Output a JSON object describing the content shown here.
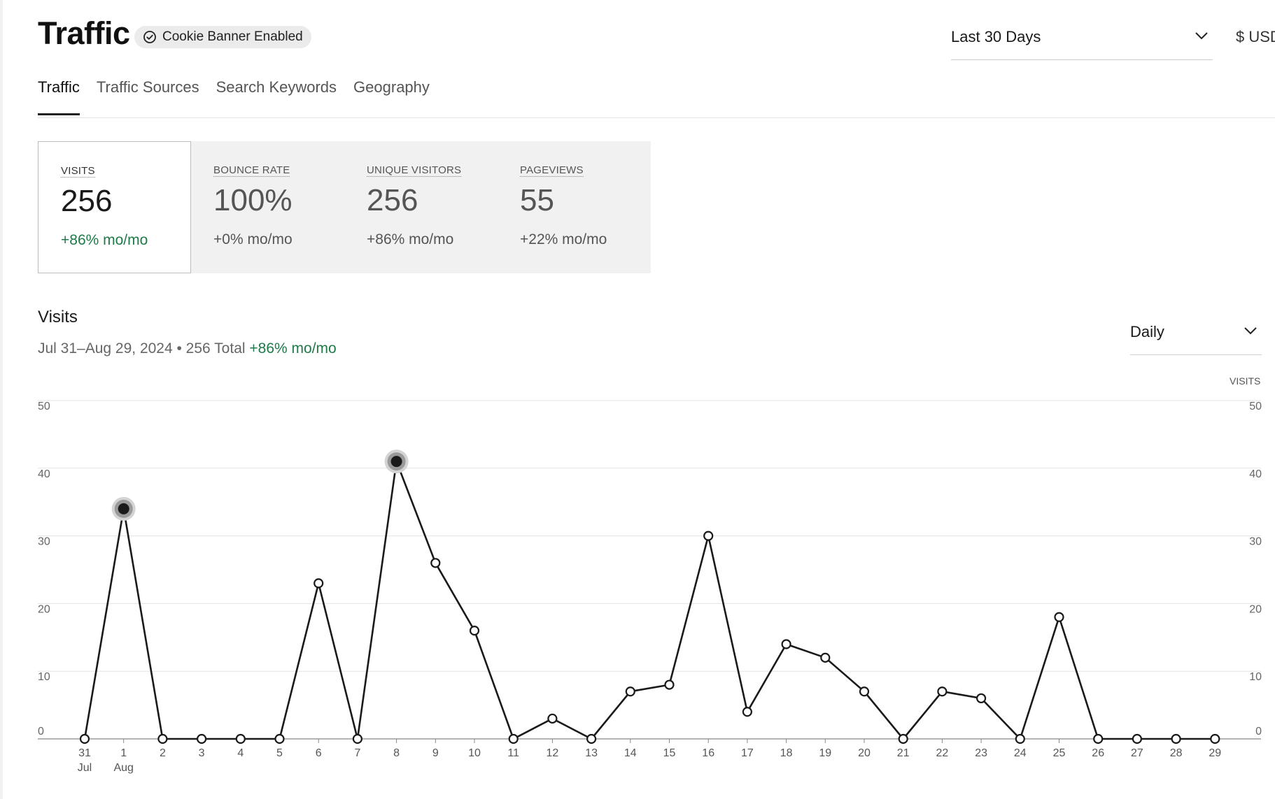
{
  "header": {
    "title": "Traffic",
    "badge": "Cookie Banner Enabled",
    "range_select": "Last 30 Days",
    "currency": "$ USD"
  },
  "tabs": [
    {
      "label": "Traffic",
      "active": true
    },
    {
      "label": "Traffic Sources",
      "active": false
    },
    {
      "label": "Search Keywords",
      "active": false
    },
    {
      "label": "Geography",
      "active": false
    }
  ],
  "metrics": [
    {
      "label": "VISITS",
      "value": "256",
      "change": "+86% mo/mo",
      "active": true
    },
    {
      "label": "BOUNCE RATE",
      "value": "100%",
      "change": "+0% mo/mo",
      "active": false
    },
    {
      "label": "UNIQUE VISITORS",
      "value": "256",
      "change": "+86% mo/mo",
      "active": false
    },
    {
      "label": "PAGEVIEWS",
      "value": "55",
      "change": "+22% mo/mo",
      "active": false
    }
  ],
  "visits_section": {
    "title": "Visits",
    "range": "Jul 31–Aug 29, 2024 • 256 Total",
    "change": "+86% mo/mo",
    "period_select": "Daily",
    "axis_title": "VISITS"
  },
  "icons": {
    "badge": "check-circle-icon",
    "dropdown": "chevron-down-icon"
  },
  "colors": {
    "positive": "#1e7a48",
    "line": "#1a1a1a",
    "grid": "#e3e3e3",
    "card_bg": "#f1f1f1"
  },
  "chart_data": {
    "type": "line",
    "x": [
      "31",
      "1",
      "2",
      "3",
      "4",
      "5",
      "6",
      "7",
      "8",
      "9",
      "10",
      "11",
      "12",
      "13",
      "14",
      "15",
      "16",
      "17",
      "18",
      "19",
      "20",
      "21",
      "22",
      "23",
      "24",
      "25",
      "26",
      "27",
      "28",
      "29"
    ],
    "month_labels": [
      {
        "index": 0,
        "label": "Jul"
      },
      {
        "index": 1,
        "label": "Aug"
      }
    ],
    "series": [
      {
        "values": [
          0,
          34,
          0,
          0,
          0,
          0,
          23,
          0,
          41,
          26,
          16,
          0,
          3,
          0,
          7,
          8,
          30,
          4,
          14,
          12,
          7,
          0,
          7,
          6,
          0,
          18,
          0,
          0,
          0,
          0
        ]
      }
    ],
    "highlighted_points": [
      1,
      8
    ],
    "ylim": [
      0,
      50
    ],
    "yticks": [
      0,
      10,
      20,
      30,
      40,
      50
    ],
    "grid": true,
    "dual_y_axis": true
  }
}
